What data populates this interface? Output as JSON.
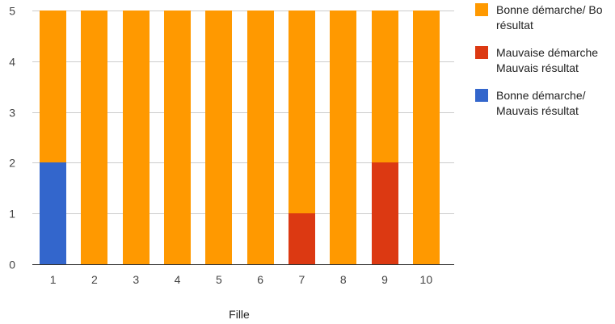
{
  "chart_data": {
    "type": "bar",
    "stacked": true,
    "categories": [
      "1",
      "2",
      "3",
      "4",
      "5",
      "6",
      "7",
      "8",
      "9",
      "10"
    ],
    "series": [
      {
        "name": "Bonne démarche/ Bo\nrésultat",
        "color": "#FF9900",
        "values": [
          3,
          5,
          5,
          5,
          5,
          5,
          4,
          5,
          3,
          5
        ]
      },
      {
        "name": "Mauvaise démarche\nMauvais résultat",
        "color": "#DC3912",
        "values": [
          0,
          0,
          0,
          0,
          0,
          0,
          1,
          0,
          2,
          0
        ]
      },
      {
        "name": "Bonne démarche/\nMauvais résultat",
        "color": "#3366CC",
        "values": [
          2,
          0,
          0,
          0,
          0,
          0,
          0,
          0,
          0,
          0
        ]
      }
    ],
    "xlabel": "Fille",
    "ylim": [
      0,
      5
    ],
    "y_ticks": [
      0,
      1,
      2,
      3,
      4,
      5
    ],
    "grid": true,
    "legend": "right"
  }
}
